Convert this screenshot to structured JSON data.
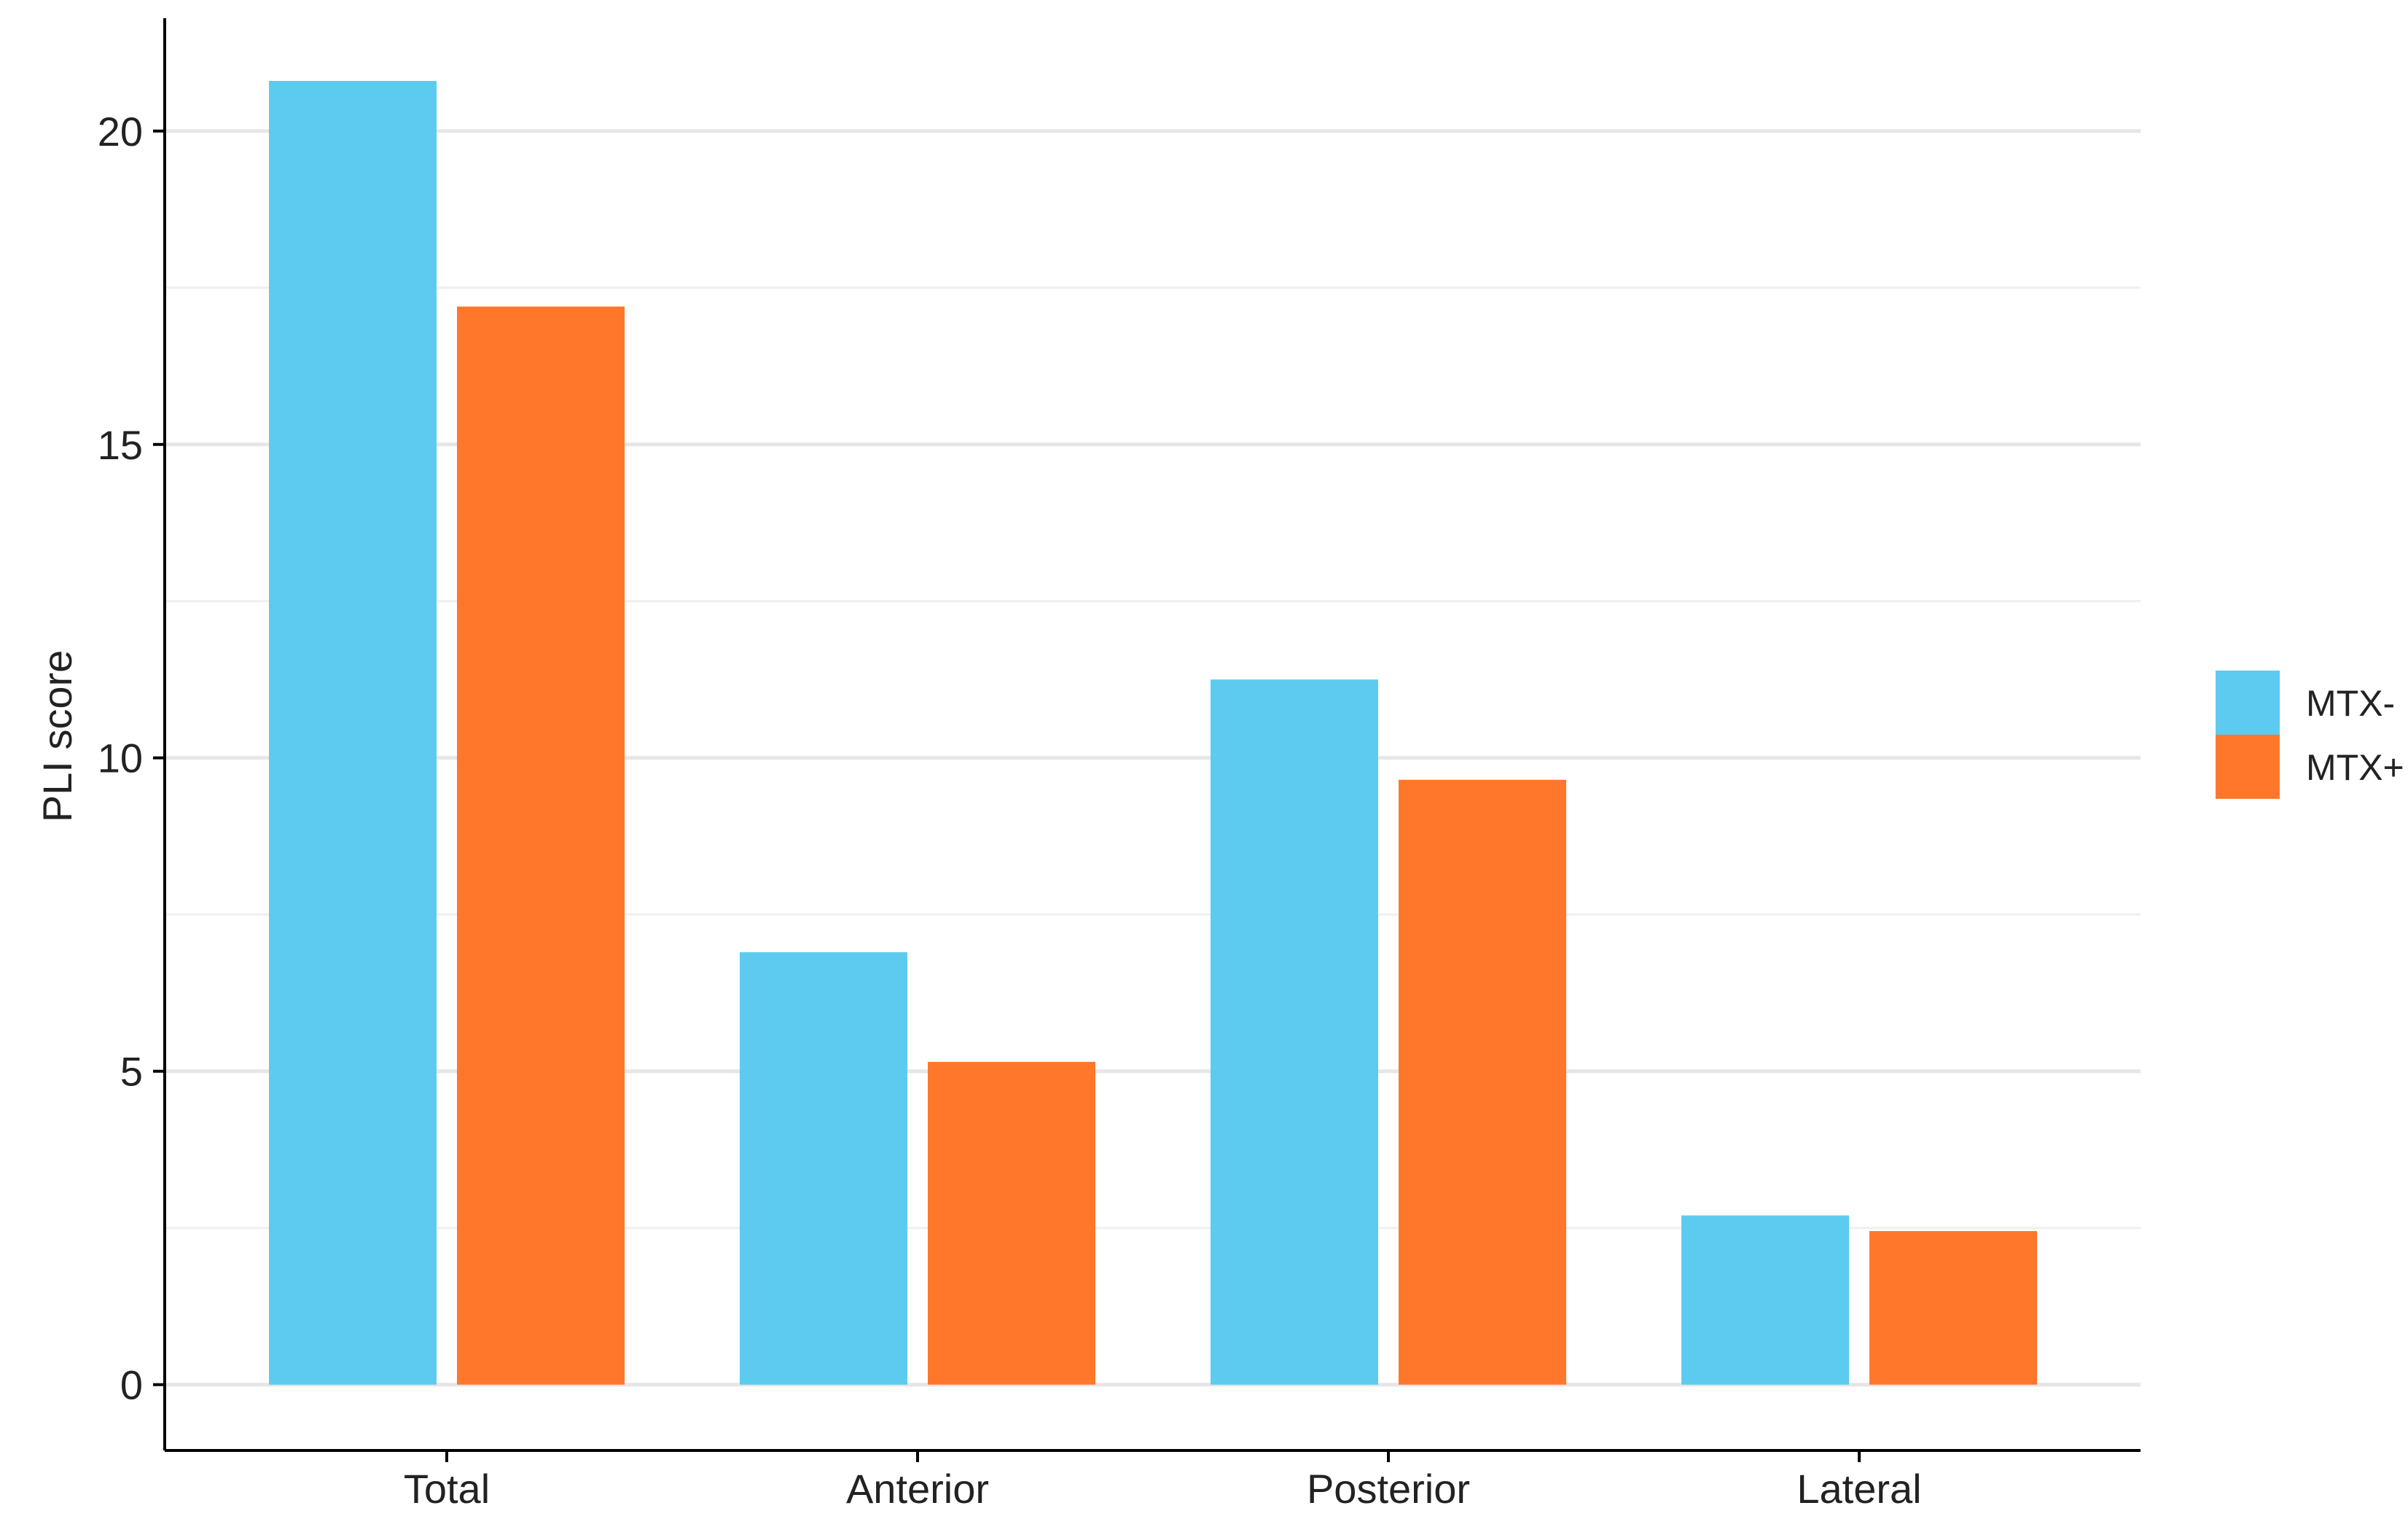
{
  "chart_data": {
    "type": "bar",
    "title": "",
    "xlabel": "",
    "ylabel": "PLI score",
    "categories": [
      "Total",
      "Anterior",
      "Posterior",
      "Lateral"
    ],
    "series": [
      {
        "name": "MTX-",
        "color": "#5dcbf0",
        "values": [
          20.8,
          6.9,
          11.25,
          2.7
        ]
      },
      {
        "name": "MTX+",
        "color": "#ff772b",
        "values": [
          17.2,
          5.15,
          9.65,
          2.45
        ]
      }
    ],
    "ylim": [
      -1.05,
      21.8
    ],
    "yticks": [
      0,
      5,
      10,
      15,
      20
    ],
    "grid_major": [
      0,
      5,
      10,
      15,
      20
    ],
    "grid_minor": [
      2.5,
      7.5,
      12.5,
      17.5
    ],
    "grid": true,
    "legend": "right",
    "colors": {
      "grid_major": "#e6e6e6",
      "grid_minor": "#efefef",
      "axis": "#000000"
    }
  }
}
